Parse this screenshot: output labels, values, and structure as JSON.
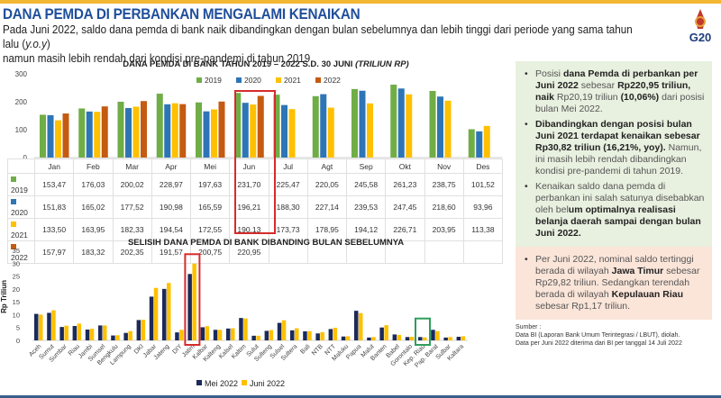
{
  "header": {
    "title": "DANA PEMDA DI PERBANKAN MENGALAMI KENAIKAN",
    "subtitle_a": "Pada Juni 2022, saldo dana pemda di bank naik dibandingkan dengan bulan sebelumnya dan lebih tinggi dari periode yang sama tahun lalu (",
    "subtitle_yoy": "y.o.y",
    "subtitle_b": ")",
    "subtitle_c": "namun masih lebih rendah dari kondisi pre-pandemi di tahun 2019.",
    "logo_text": "G20"
  },
  "chart_data": [
    {
      "type": "bar",
      "title": "DANA PEMDA DI BANK TAHUN 2019 – 2022 S.D. 30 JUNI",
      "title_italic": "(TRILIUN RP)",
      "ylim": [
        0,
        300
      ],
      "yticks": [
        "0",
        "100",
        "200",
        "300"
      ],
      "legend": "top",
      "categories": [
        "Jan",
        "Feb",
        "Mar",
        "Apr",
        "Mei",
        "Jun",
        "Jul",
        "Agt",
        "Sep",
        "Okt",
        "Nov",
        "Des"
      ],
      "series": [
        {
          "name": "2019",
          "color": "#70ad47",
          "values": [
            153.47,
            176.03,
            200.02,
            228.97,
            197.63,
            231.7,
            225.47,
            220.05,
            245.58,
            261.23,
            238.75,
            101.52
          ],
          "labels": [
            "153,47",
            "176,03",
            "200,02",
            "228,97",
            "197,63",
            "231,70",
            "225,47",
            "220,05",
            "245,58",
            "261,23",
            "238,75",
            "101,52"
          ]
        },
        {
          "name": "2020",
          "color": "#2e75b6",
          "values": [
            151.83,
            165.02,
            177.52,
            190.98,
            165.59,
            196.21,
            188.3,
            227.14,
            239.53,
            247.45,
            218.6,
            93.96
          ],
          "labels": [
            "151,83",
            "165,02",
            "177,52",
            "190,98",
            "165,59",
            "196,21",
            "188,30",
            "227,14",
            "239,53",
            "247,45",
            "218,60",
            "93,96"
          ]
        },
        {
          "name": "2021",
          "color": "#ffc000",
          "values": [
            133.5,
            163.95,
            182.33,
            194.54,
            172.55,
            190.13,
            173.73,
            178.95,
            194.12,
            226.71,
            203.95,
            113.38
          ],
          "labels": [
            "133,50",
            "163,95",
            "182,33",
            "194,54",
            "172,55",
            "190,13",
            "173,73",
            "178,95",
            "194,12",
            "226,71",
            "203,95",
            "113,38"
          ]
        },
        {
          "name": "2022",
          "color": "#c55a11",
          "values": [
            157.97,
            183.32,
            202.35,
            191.57,
            200.75,
            220.95,
            null,
            null,
            null,
            null,
            null,
            null
          ],
          "labels": [
            "157,97",
            "183,32",
            "202,35",
            "191,57",
            "200,75",
            "220,95",
            "",
            "",
            "",
            "",
            "",
            ""
          ]
        }
      ],
      "highlight": "Jun",
      "highlight_color": "#d62b2b"
    },
    {
      "type": "bar",
      "title": "SELISIH DANA PEMDA DI BANK DIBANDING BULAN SEBELUMNYA",
      "ylabel": "Rp Triliun",
      "ylim": [
        0,
        35
      ],
      "yticks": [
        "0",
        "5",
        "10",
        "15",
        "20",
        "25",
        "30",
        "35"
      ],
      "legend": "bottom",
      "categories": [
        "Aceh",
        "Sumut",
        "Sumbar",
        "Riau",
        "Jambi",
        "Sumsel",
        "Bengkulu",
        "Lampung",
        "DKI",
        "Jabar",
        "Jateng",
        "DIY",
        "Jatim",
        "Kalbar",
        "Kalteng",
        "Kalsel",
        "Kaltim",
        "Sulut",
        "Sulteng",
        "Sulsel",
        "Sultera",
        "Bali",
        "NTB",
        "NTT",
        "Maluku",
        "Papua",
        "Malut",
        "Banten",
        "Babel",
        "Gorontalo",
        "Kep. Riau",
        "Pap. Barat",
        "Sulbar",
        "Kaltara"
      ],
      "series": [
        {
          "name": "Mei 2022",
          "color": "#1b2a5a",
          "values": [
            10.3,
            10.7,
            5.2,
            5.6,
            4.2,
            5.8,
            1.9,
            2.9,
            7.9,
            17.0,
            20.0,
            3.1,
            25.8,
            5.1,
            4.1,
            4.6,
            8.7,
            1.8,
            3.7,
            6.8,
            3.9,
            3.5,
            2.7,
            4.4,
            1.5,
            11.5,
            1.1,
            5.0,
            2.3,
            1.3,
            1.3,
            4.1,
            1.1,
            1.4
          ]
        },
        {
          "name": "Juni 2022",
          "color": "#ffc000",
          "values": [
            10.0,
            11.7,
            5.7,
            6.5,
            4.5,
            5.8,
            2.0,
            3.6,
            8.0,
            20.4,
            22.3,
            4.1,
            29.82,
            5.5,
            4.1,
            4.7,
            8.5,
            1.8,
            4.0,
            7.8,
            4.7,
            3.6,
            3.2,
            4.9,
            1.6,
            10.6,
            1.3,
            5.9,
            2.1,
            1.4,
            1.17,
            3.6,
            1.3,
            1.6
          ]
        }
      ],
      "highlight_max": "Jatim",
      "highlight_max_color": "#d62b2b",
      "highlight_min": "Kep. Riau",
      "highlight_min_color": "#2e9e5b"
    }
  ],
  "panel": {
    "b1": [
      {
        "t": "Posisi "
      },
      {
        "b": "dana Pemda di perbankan per Juni 2022"
      },
      {
        "t": " sebesar "
      },
      {
        "b": "Rp220,95 triliun, naik"
      },
      {
        "t": " Rp20,19 triliun "
      },
      {
        "b": "(10,06%)"
      },
      {
        "t": " dari posisi bulan Mei 2022."
      }
    ],
    "b2": [
      {
        "b": "Dibandingkan dengan posisi bulan Juni 2021 terdapat kenaikan sebesar Rp30,82 triliun (16,21%, yoy)."
      },
      {
        "t": " Namun, ini masih lebih rendah dibandingkan kondisi pre-pandemi di tahun 2019."
      }
    ],
    "b3": [
      {
        "t": "Kenaikan saldo dana pemda di perbankan ini salah satunya disebabkan oleh bel"
      },
      {
        "b": "um optimalnya realisasi belanja daerah sampai dengan bulan Juni 2022."
      }
    ],
    "b4": [
      {
        "t": "Per Juni 2022, nominal saldo tertinggi berada di wilayah "
      },
      {
        "b": "Jawa Timur"
      },
      {
        "t": " sebesar Rp29,82 triliun. Sedangkan terendah berada di wilayah "
      },
      {
        "b": "Kepulauan Riau"
      },
      {
        "t": " sebesar Rp1,17 triliun."
      }
    ]
  },
  "source": {
    "label": "Sumber :",
    "line1": "Data BI (Laporan Bank Umum Terintegrasi / LBUT), diolah.",
    "line2": "Data per Juni 2022 diterima dari BI per tanggal 14 Juli 2022"
  }
}
